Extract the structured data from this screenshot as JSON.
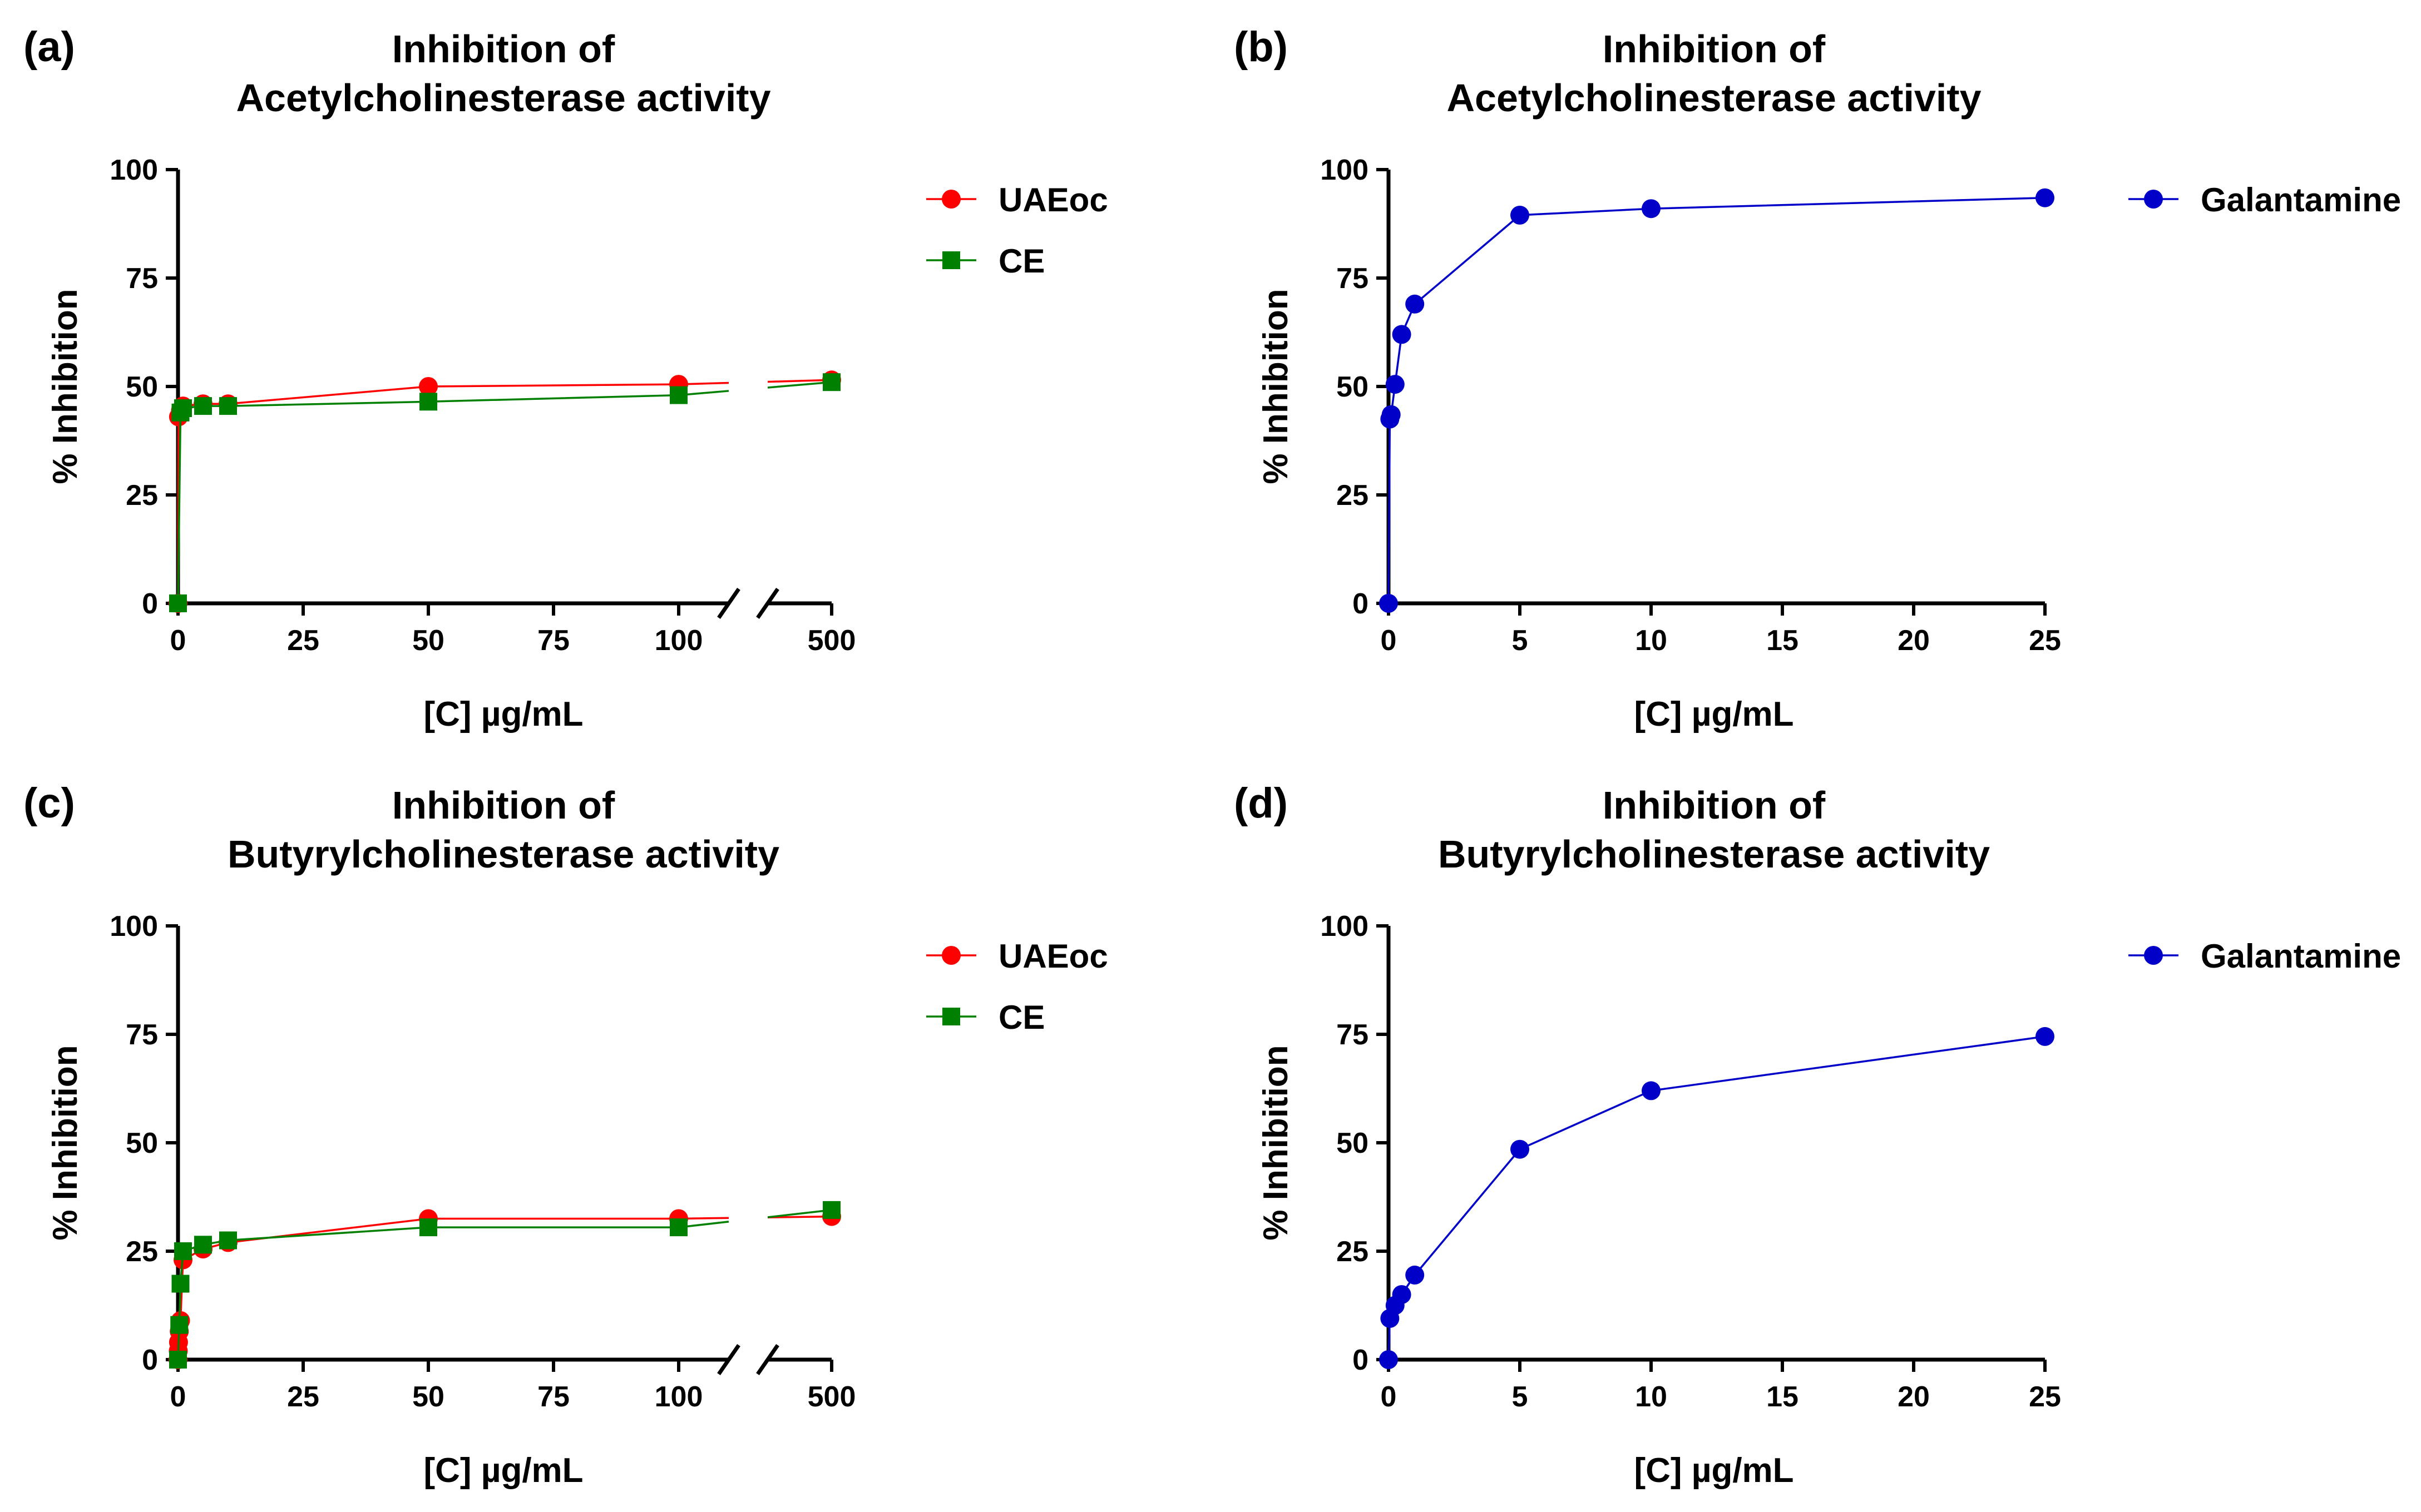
{
  "chart_data": [
    {
      "panel_label": "(a)",
      "type": "line",
      "title": [
        "Inhibition of",
        "Acetylcholinesterase activity"
      ],
      "xlabel": "[C] µg/mL",
      "ylabel": "% Inhibition",
      "ylim": [
        0,
        100
      ],
      "yticks": [
        0,
        25,
        50,
        75,
        100
      ],
      "x_axis_break": true,
      "xlim": [
        0,
        110
      ],
      "xticks": [
        0,
        25,
        50,
        75,
        100
      ],
      "x_after_break_ticks": [
        500
      ],
      "legend_position": "right",
      "series": [
        {
          "name": "UAEoc",
          "color": "#ff0000",
          "marker": "circle",
          "x": [
            0,
            0.1,
            0.5,
            1,
            5,
            10,
            50,
            100,
            500
          ],
          "y": [
            0,
            43,
            44.5,
            45.5,
            46,
            46,
            50,
            50.5,
            51.5
          ]
        },
        {
          "name": "CE",
          "color": "#008000",
          "marker": "square",
          "x": [
            0,
            0.5,
            1,
            5,
            10,
            50,
            100,
            500
          ],
          "y": [
            0,
            44,
            45,
            45.5,
            45.5,
            46.5,
            48,
            51
          ]
        }
      ]
    },
    {
      "panel_label": "(b)",
      "type": "line",
      "title": [
        "Inhibition of",
        "Acetylcholinesterase activity"
      ],
      "xlabel": "[C] µg/mL",
      "ylabel": "% Inhibition",
      "ylim": [
        0,
        100
      ],
      "yticks": [
        0,
        25,
        50,
        75,
        100
      ],
      "xlim": [
        0,
        25
      ],
      "xticks": [
        0,
        5,
        10,
        15,
        20,
        25
      ],
      "legend_position": "right",
      "series": [
        {
          "name": "Galantamine",
          "color": "#0000c8",
          "marker": "circle",
          "x": [
            0,
            0.05,
            0.1,
            0.25,
            0.5,
            1,
            5,
            10,
            25
          ],
          "y": [
            0,
            42.5,
            43.5,
            50.5,
            62,
            69,
            89.5,
            91,
            93.5
          ]
        }
      ]
    },
    {
      "panel_label": "(c)",
      "type": "line",
      "title": [
        "Inhibition of",
        "Butyrylcholinesterase activity"
      ],
      "xlabel": "[C] µg/mL",
      "ylabel": "% Inhibition",
      "ylim": [
        0,
        100
      ],
      "yticks": [
        0,
        25,
        50,
        75,
        100
      ],
      "x_axis_break": true,
      "xlim": [
        0,
        110
      ],
      "xticks": [
        0,
        25,
        50,
        75,
        100
      ],
      "x_after_break_ticks": [
        500
      ],
      "legend_position": "right",
      "series": [
        {
          "name": "UAEoc",
          "color": "#ff0000",
          "marker": "circle",
          "x": [
            0,
            0.05,
            0.1,
            0.25,
            0.5,
            1,
            5,
            10,
            50,
            100,
            500
          ],
          "y": [
            0,
            2,
            4,
            6.5,
            9,
            23,
            25.5,
            27,
            32.5,
            32.5,
            33
          ]
        },
        {
          "name": "CE",
          "color": "#008000",
          "marker": "square",
          "x": [
            0,
            0.25,
            0.5,
            1,
            5,
            10,
            50,
            100,
            500
          ],
          "y": [
            0,
            8,
            17.5,
            25,
            26.5,
            27.5,
            30.5,
            30.5,
            34.5
          ]
        }
      ]
    },
    {
      "panel_label": "(d)",
      "type": "line",
      "title": [
        "Inhibition of",
        "Butyrylcholinesterase activity"
      ],
      "xlabel": "[C] µg/mL",
      "ylabel": "% Inhibition",
      "ylim": [
        0,
        100
      ],
      "yticks": [
        0,
        25,
        50,
        75,
        100
      ],
      "xlim": [
        0,
        25
      ],
      "xticks": [
        0,
        5,
        10,
        15,
        20,
        25
      ],
      "legend_position": "right",
      "series": [
        {
          "name": "Galantamine",
          "color": "#0000c8",
          "marker": "circle",
          "x": [
            0,
            0.05,
            0.25,
            0.5,
            1,
            5,
            10,
            25
          ],
          "y": [
            0,
            9.5,
            12.5,
            15,
            19.5,
            48.5,
            62,
            74.5
          ]
        }
      ]
    }
  ]
}
